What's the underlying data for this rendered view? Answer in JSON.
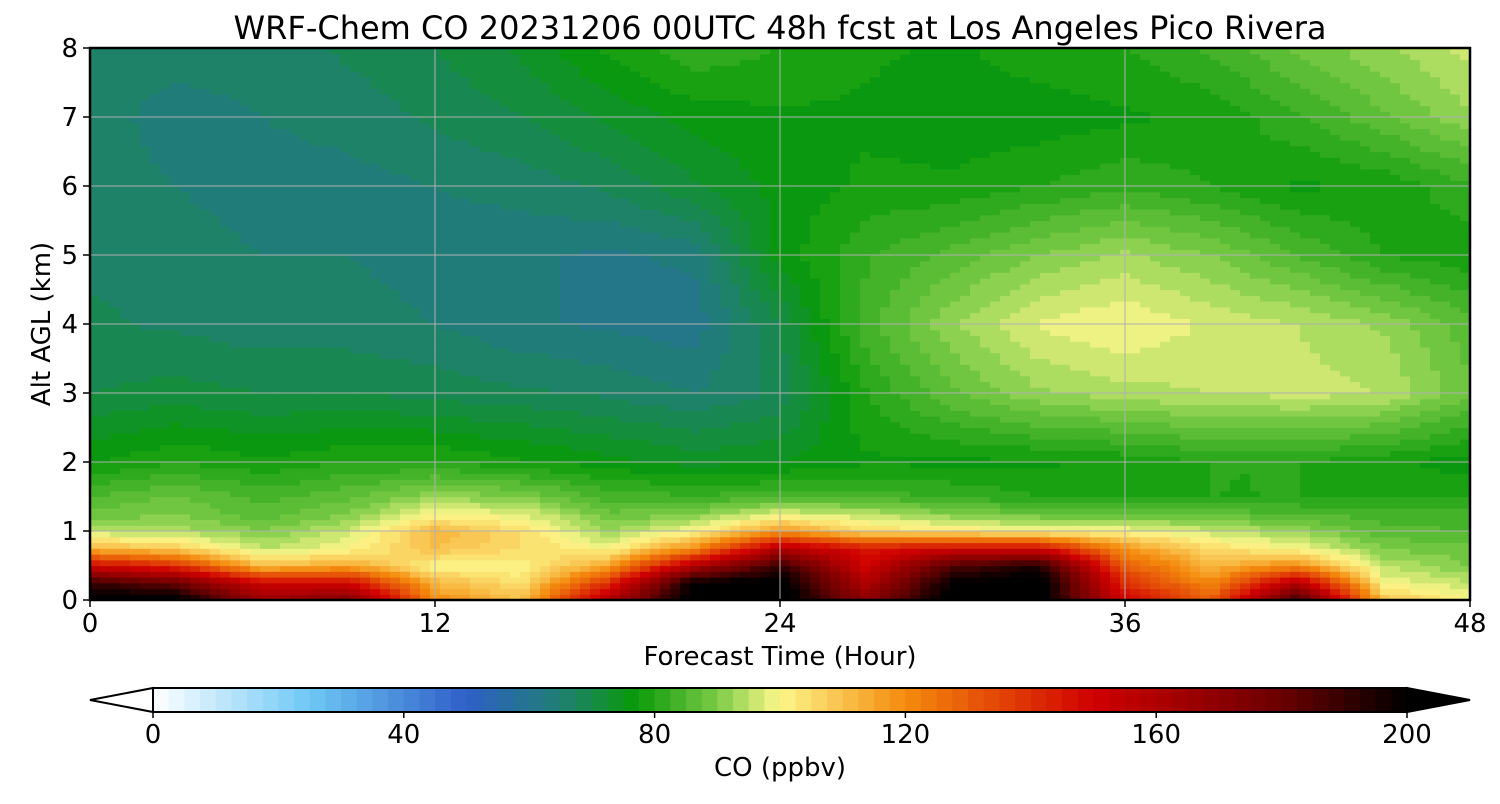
{
  "chart_data": {
    "type": "heatmap",
    "title": "WRF-Chem CO  20231206 00UTC 48h fcst at Los Angeles Pico Rivera",
    "xlabel": "Forecast Time (Hour)",
    "ylabel": "Alt AGL (km)",
    "xlim": [
      0,
      48
    ],
    "ylim": [
      0,
      8
    ],
    "x_ticks": [
      0,
      12,
      24,
      36,
      48
    ],
    "y_ticks": [
      0,
      1,
      2,
      3,
      4,
      5,
      6,
      7,
      8
    ],
    "grid": true,
    "colorbar": {
      "label": "CO  (ppbv)",
      "range": [
        0,
        200
      ],
      "ticks": [
        0,
        40,
        80,
        120,
        160,
        200
      ],
      "step": 2.5,
      "extend": "both",
      "orientation": "horizontal",
      "placement": "bottom"
    },
    "colormap_stops": [
      {
        "v": 0,
        "color": "#ffffff"
      },
      {
        "v": 25,
        "color": "#6ec8f5"
      },
      {
        "v": 50,
        "color": "#2f5fc8"
      },
      {
        "v": 65,
        "color": "#1f7f72"
      },
      {
        "v": 77,
        "color": "#0a9a0a"
      },
      {
        "v": 90,
        "color": "#7ccb46"
      },
      {
        "v": 100,
        "color": "#fdf78a"
      },
      {
        "v": 120,
        "color": "#f48a0c"
      },
      {
        "v": 150,
        "color": "#d00000"
      },
      {
        "v": 180,
        "color": "#6a0000"
      },
      {
        "v": 200,
        "color": "#000000"
      }
    ],
    "x": [
      0,
      3,
      6,
      9,
      12,
      15,
      18,
      21,
      24,
      27,
      30,
      33,
      36,
      39,
      42,
      45,
      48
    ],
    "y": [
      0,
      0.25,
      0.5,
      0.75,
      1,
      1.25,
      1.5,
      2,
      3,
      4,
      5,
      6,
      7,
      8
    ],
    "z": [
      [
        205,
        205,
        165,
        175,
        120,
        110,
        160,
        205,
        205,
        170,
        205,
        205,
        150,
        130,
        190,
        110,
        100
      ],
      [
        190,
        180,
        150,
        150,
        112,
        104,
        140,
        200,
        205,
        160,
        200,
        205,
        140,
        120,
        160,
        100,
        95
      ],
      [
        150,
        140,
        110,
        115,
        100,
        100,
        115,
        160,
        190,
        150,
        185,
        195,
        130,
        112,
        120,
        95,
        90
      ],
      [
        112,
        108,
        95,
        100,
        110,
        105,
        100,
        120,
        160,
        145,
        150,
        150,
        118,
        105,
        100,
        90,
        88
      ],
      [
        95,
        94,
        90,
        96,
        112,
        105,
        92,
        100,
        118,
        105,
        103,
        100,
        100,
        96,
        92,
        86,
        85
      ],
      [
        88,
        90,
        86,
        90,
        100,
        98,
        88,
        90,
        98,
        95,
        90,
        88,
        87,
        87,
        85,
        84,
        83
      ],
      [
        85,
        88,
        84,
        87,
        92,
        90,
        84,
        83,
        84,
        84,
        82,
        80,
        80,
        80,
        80,
        80,
        80
      ],
      [
        77,
        80,
        78,
        80,
        80,
        78,
        76,
        74,
        75,
        77,
        77,
        77,
        78,
        80,
        80,
        78,
        76
      ],
      [
        70,
        71,
        70,
        70,
        69,
        68,
        67,
        65,
        68,
        80,
        87,
        92,
        94,
        95,
        96,
        95,
        88
      ],
      [
        68,
        67,
        66,
        66,
        65,
        63,
        62,
        61,
        70,
        84,
        92,
        98,
        100,
        97,
        95,
        92,
        86
      ],
      [
        67,
        66,
        65,
        65,
        64,
        63,
        62,
        63,
        76,
        82,
        86,
        90,
        93,
        90,
        85,
        80,
        78
      ],
      [
        66,
        65,
        64,
        64,
        65,
        66,
        68,
        72,
        76,
        78,
        78,
        80,
        82,
        80,
        77,
        78,
        82
      ],
      [
        66,
        64,
        65,
        66,
        68,
        70,
        73,
        76,
        77,
        77,
        76,
        76,
        77,
        78,
        82,
        87,
        92
      ],
      [
        66,
        66,
        66,
        68,
        70,
        73,
        78,
        82,
        80,
        78,
        77,
        79,
        80,
        83,
        88,
        92,
        96
      ]
    ]
  }
}
